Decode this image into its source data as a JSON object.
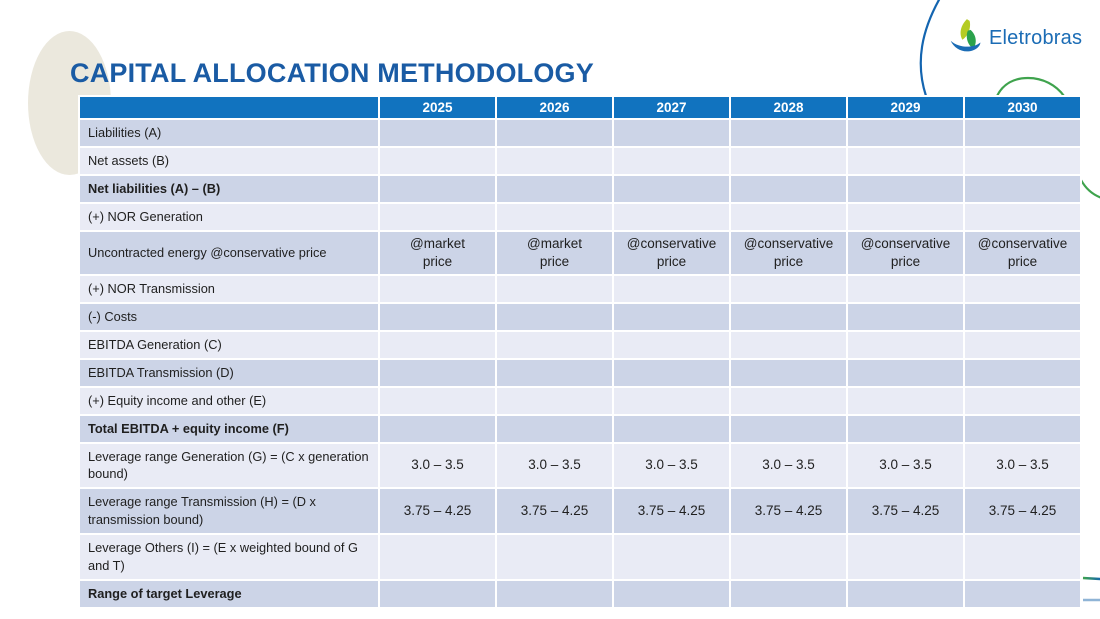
{
  "slide": {
    "title": "CAPITAL ALLOCATION METHODOLOGY",
    "logo_text": "Eletrobras"
  },
  "colors": {
    "title_blue": "#1A5BA4",
    "header_bg": "#1173BF",
    "row_dark": "#CCD4E7",
    "row_light": "#E9EBF5",
    "green_text": "#2FA452",
    "logo_blue": "#1B6CB5",
    "logo_yellow_green": "#B5CC23",
    "logo_green": "#2BA24C",
    "arc_blue": "#1465B0",
    "arc_green": "#3FA34D"
  },
  "table": {
    "year_columns": [
      "2025",
      "2026",
      "2027",
      "2028",
      "2029",
      "2030"
    ],
    "rows": [
      {
        "label": "Liabilities (A)",
        "bold": false,
        "values": [
          "",
          "",
          "",
          "",
          "",
          ""
        ]
      },
      {
        "label": "Net assets (B)",
        "bold": false,
        "values": [
          "",
          "",
          "",
          "",
          "",
          ""
        ]
      },
      {
        "label": "Net liabilities (A) – (B)",
        "bold": true,
        "values": [
          "",
          "",
          "",
          "",
          "",
          ""
        ]
      },
      {
        "label": "(+) NOR Generation",
        "bold": false,
        "values": [
          "",
          "",
          "",
          "",
          "",
          ""
        ]
      },
      {
        "label": "Uncontracted energy @conservative price",
        "bold": false,
        "values": [
          "@market\nprice",
          "@market\nprice",
          "@conservative\nprice",
          "@conservative\nprice",
          "@conservative\nprice",
          "@conservative\nprice"
        ],
        "value_colors": [
          "default",
          "default",
          "green",
          "green",
          "green",
          "green"
        ]
      },
      {
        "label": "(+) NOR Transmission",
        "bold": false,
        "values": [
          "",
          "",
          "",
          "",
          "",
          ""
        ]
      },
      {
        "label": "(-) Costs",
        "bold": false,
        "values": [
          "",
          "",
          "",
          "",
          "",
          ""
        ]
      },
      {
        "label": "EBITDA Generation (C)",
        "bold": false,
        "values": [
          "",
          "",
          "",
          "",
          "",
          ""
        ]
      },
      {
        "label": "EBITDA Transmission (D)",
        "bold": false,
        "values": [
          "",
          "",
          "",
          "",
          "",
          ""
        ]
      },
      {
        "label": "(+) Equity income and other (E)",
        "bold": false,
        "values": [
          "",
          "",
          "",
          "",
          "",
          ""
        ]
      },
      {
        "label": "Total EBITDA + equity income (F)",
        "bold": true,
        "values": [
          "",
          "",
          "",
          "",
          "",
          ""
        ]
      },
      {
        "label": "Leverage range Generation (G) = (C x generation bound)",
        "bold": false,
        "values": [
          "3.0 – 3.5",
          "3.0 – 3.5",
          "3.0 – 3.5",
          "3.0 – 3.5",
          "3.0 – 3.5",
          "3.0 – 3.5"
        ]
      },
      {
        "label": "Leverage range Transmission (H) = (D x transmission bound)",
        "bold": false,
        "values": [
          "3.75 – 4.25",
          "3.75 – 4.25",
          "3.75 – 4.25",
          "3.75 – 4.25",
          "3.75 – 4.25",
          "3.75 – 4.25"
        ]
      },
      {
        "label": "Leverage Others (I) = (E x weighted bound of G and T)",
        "bold": false,
        "values": [
          "",
          "",
          "",
          "",
          "",
          ""
        ]
      },
      {
        "label": "Range of target Leverage",
        "bold": true,
        "values": [
          "",
          "",
          "",
          "",
          "",
          ""
        ]
      }
    ]
  }
}
